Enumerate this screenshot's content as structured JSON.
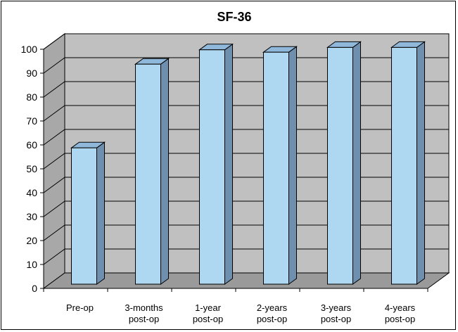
{
  "chart_data": {
    "type": "bar",
    "title": "SF-36",
    "categories": [
      [
        "Pre-op"
      ],
      [
        "3-months",
        "post-op"
      ],
      [
        "1-year",
        "post-op"
      ],
      [
        "2-years",
        "post-op"
      ],
      [
        "3-years",
        "post-op"
      ],
      [
        "4-years",
        "post-op"
      ]
    ],
    "values": [
      57,
      92,
      98,
      97,
      99,
      99
    ],
    "ylim": [
      0,
      100
    ],
    "yticks": [
      0,
      10,
      20,
      30,
      40,
      50,
      60,
      70,
      80,
      90,
      100
    ],
    "xlabel": "",
    "ylabel": "",
    "grid": true,
    "legend": "none",
    "colors": {
      "bar_front": "#aed8f2",
      "bar_top": "#8fb8da",
      "bar_side": "#6f8fae",
      "wall": "#c0c0c0",
      "floor": "#9a9a9a",
      "grid": "#000000"
    }
  }
}
